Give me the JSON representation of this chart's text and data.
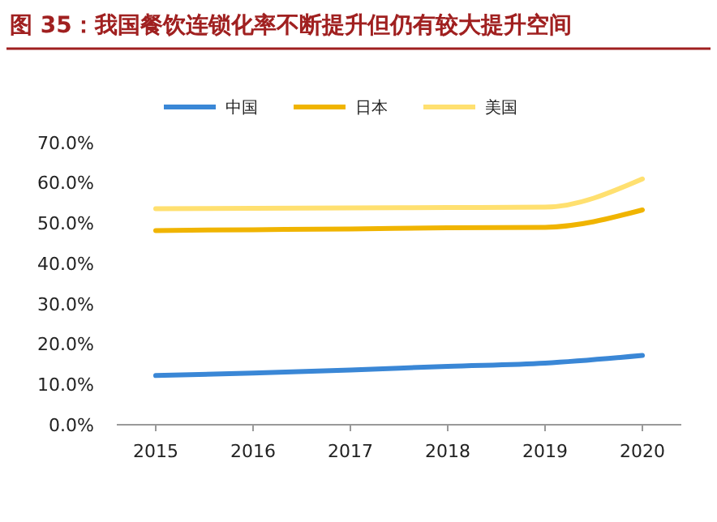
{
  "chart_data": {
    "type": "line",
    "title": "图 35：我国餐饮连锁化率不断提升但仍有较大提升空间",
    "x": [
      2015,
      2016,
      2017,
      2018,
      2019,
      2020
    ],
    "xlim": [
      2014.6,
      2020.4
    ],
    "xticks": [
      2015,
      2016,
      2017,
      2018,
      2019,
      2020
    ],
    "ylim": [
      0,
      70
    ],
    "yticks": [
      {
        "value": 0,
        "label": "0.0%"
      },
      {
        "value": 10,
        "label": "10.0%"
      },
      {
        "value": 20,
        "label": "20.0%"
      },
      {
        "value": 30,
        "label": "30.0%"
      },
      {
        "value": 40,
        "label": "40.0%"
      },
      {
        "value": 50,
        "label": "50.0%"
      },
      {
        "value": 60,
        "label": "60.0%"
      },
      {
        "value": 70,
        "label": "70.0%"
      }
    ],
    "series": [
      {
        "name": "中国",
        "color": "#3a87d6",
        "values": [
          12.2,
          12.8,
          13.6,
          14.5,
          15.3,
          17.2
        ]
      },
      {
        "name": "日本",
        "color": "#f0b400",
        "values": [
          48.2,
          48.4,
          48.6,
          48.9,
          49.0,
          53.3
        ]
      },
      {
        "name": "美国",
        "color": "#ffe070",
        "values": [
          53.6,
          53.7,
          53.8,
          53.9,
          54.0,
          61.0
        ]
      }
    ],
    "legend": "top",
    "grid": false,
    "marker": "none",
    "line_style": "solid"
  }
}
